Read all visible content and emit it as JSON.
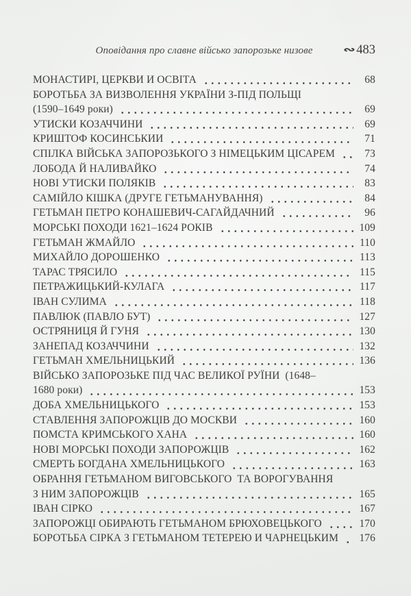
{
  "page": {
    "paper_color": "#eff1ef",
    "text_color": "#403f3a"
  },
  "header": {
    "running_title": "Оповідання про славне військо запорозьке низове",
    "ornament": "∾",
    "page_number": "483"
  },
  "toc": {
    "entries": [
      {
        "lines": [
          "МОНАСТИРІ, ЦЕРКВИ И ОСВІТА"
        ],
        "page": "68"
      },
      {
        "lines": [
          "БОРОТЬБА ЗА ВИЗВОЛЕННЯ УКРАЇНИ З-ПІД ПОЛЬЩІ",
          "(1590–1649 роки)"
        ],
        "page": "69"
      },
      {
        "lines": [
          "УТИСКИ КОЗАЧЧИНИ"
        ],
        "page": "69"
      },
      {
        "lines": [
          "КРИШТОФ КОСИНСЬКИИ"
        ],
        "page": "71"
      },
      {
        "lines": [
          "СПІЛКА ВІЙСЬКА ЗАПОРОЗЬКОГО З НІМЕЦЬКИМ ЦІСАРЕМ"
        ],
        "page": "73"
      },
      {
        "lines": [
          "ЛОБОДА Й НАЛИВАЙКО"
        ],
        "page": "74"
      },
      {
        "lines": [
          "НОВІ УТИСКИ ПОЛЯКІВ"
        ],
        "page": "83"
      },
      {
        "lines": [
          "САМІЙЛО КІШКА (ДРУГЕ ГЕТЬМАНУВАННЯ)"
        ],
        "page": "84"
      },
      {
        "lines": [
          "ГЕТЬМАН ПЕТРО КОНАШЕВИЧ-САГАЙДАЧНИЙ"
        ],
        "page": "96"
      },
      {
        "lines": [
          "МОРСЬКІ ПОХОДИ 1621–1624 РОКІВ"
        ],
        "page": "109"
      },
      {
        "lines": [
          "ГЕТЬМАН ЖМАЙЛО"
        ],
        "page": "110"
      },
      {
        "lines": [
          "МИХАЙЛО ДОРОШЕНКО"
        ],
        "page": "113"
      },
      {
        "lines": [
          "ТАРАС ТРЯСИЛО"
        ],
        "page": "115"
      },
      {
        "lines": [
          "ПЕТРАЖИЦЬКИЙ-КУЛАГА"
        ],
        "page": "117"
      },
      {
        "lines": [
          "ІВАН СУЛИМА"
        ],
        "page": "118"
      },
      {
        "lines": [
          "ПАВЛЮК (ПАВЛО БУТ)"
        ],
        "page": "127"
      },
      {
        "lines": [
          "ОСТРЯНИЦЯ Й ГУНЯ"
        ],
        "page": "130"
      },
      {
        "lines": [
          "ЗАНЕПАД КОЗАЧЧИНИ"
        ],
        "page": "132"
      },
      {
        "lines": [
          "ГЕТЬМАН ХМЕЛЬНИЦЬКИЙ"
        ],
        "page": "136"
      },
      {
        "lines": [
          "ВІЙСЬКО ЗАПОРОЗЬКЕ ПІД ЧАС ВЕЛИКОЇ РУЇНИ  (1648–",
          "1680 роки)"
        ],
        "page": "153"
      },
      {
        "lines": [
          "ДОБА ХМЕЛЬНИЦЬКОГО"
        ],
        "page": "153"
      },
      {
        "lines": [
          "СТАВЛЕННЯ ЗАПОРОЖЦІВ ДО МОСКВИ"
        ],
        "page": "160"
      },
      {
        "lines": [
          "ПОМСТА КРИМСЬКОГО ХАНА"
        ],
        "page": "160"
      },
      {
        "lines": [
          "НОВІ МОРСЬКІ ПОХОДИ ЗАПОРОЖЦІВ"
        ],
        "page": "162"
      },
      {
        "lines": [
          "СМЕРТЬ БОГДАНА ХМЕЛЬНИЦЬКОГО"
        ],
        "page": "163"
      },
      {
        "lines": [
          "ОБРАННЯ ГЕТЬМАНОМ ВИГОВСЬКОГО  ТА ВОРОГУВАННЯ",
          "З НИМ ЗАПОРОЖЦІВ"
        ],
        "page": "165"
      },
      {
        "lines": [
          "ІВАН СІРКО"
        ],
        "page": "167"
      },
      {
        "lines": [
          "ЗАПОРОЖЦІ ОБИРАЮТЬ ГЕТЬМАНОМ БРЮХОВЕЦЬКОГО"
        ],
        "page": "170"
      },
      {
        "lines": [
          "БОРОТЬБА СІРКА З ГЕТЬМАНОМ ТЕТЕРЕЮ И ЧАРНЕЦЬКИМ"
        ],
        "page": "176"
      }
    ]
  }
}
